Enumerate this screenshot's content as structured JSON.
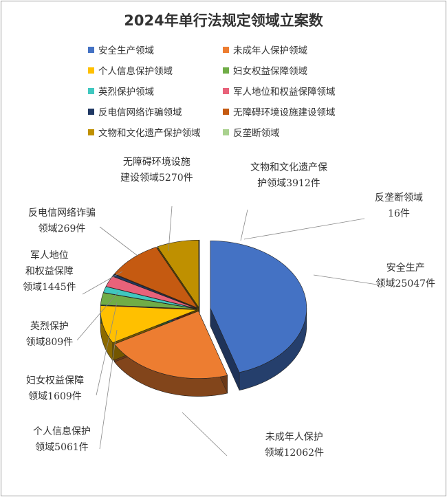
{
  "chart_data": {
    "type": "pie",
    "title": "2024年单行法规定领域立案数",
    "legend_position": "top",
    "three_d": true,
    "unit": "件",
    "slices": [
      {
        "name": "安全生产领域",
        "value": 25047,
        "color": "#4472c4",
        "label_lines": [
          "安全生产",
          "领域25047件"
        ],
        "exploded": true
      },
      {
        "name": "未成年人保护领域",
        "value": 12062,
        "color": "#ed7d31",
        "label_lines": [
          "未成年人保护",
          "领域12062件"
        ]
      },
      {
        "name": "个人信息保护领域",
        "value": 5061,
        "color": "#ffc000",
        "label_lines": [
          "个人信息保护",
          "领域5061件"
        ]
      },
      {
        "name": "妇女权益保障领域",
        "value": 1609,
        "color": "#70ad47",
        "label_lines": [
          "妇女权益保障",
          "领域1609件"
        ]
      },
      {
        "name": "英烈保护领域",
        "value": 809,
        "color": "#40c8c0",
        "label_lines": [
          "英烈保护",
          "领域809件"
        ]
      },
      {
        "name": "军人地位和权益保障领域",
        "value": 1445,
        "color": "#e8627a",
        "label_lines": [
          "军人地位",
          "和权益保障",
          "领域1445件"
        ]
      },
      {
        "name": "反电信网络诈骗领域",
        "value": 269,
        "color": "#203864",
        "label_lines": [
          "反电信网络诈骗",
          "领域269件"
        ]
      },
      {
        "name": "无障碍环境设施建设领域",
        "value": 5270,
        "color": "#c55a11",
        "label_lines": [
          "无障碍环境设施",
          "建设领域5270件"
        ]
      },
      {
        "name": "文物和文化遗产保护领域",
        "value": 3912,
        "color": "#bf9000",
        "label_lines": [
          "文物和文化遗产保",
          "护领域3912件"
        ]
      },
      {
        "name": "反垄断领域",
        "value": 16,
        "color": "#a9d18e",
        "label_lines": [
          "反垄断领域",
          "16件"
        ]
      }
    ]
  }
}
